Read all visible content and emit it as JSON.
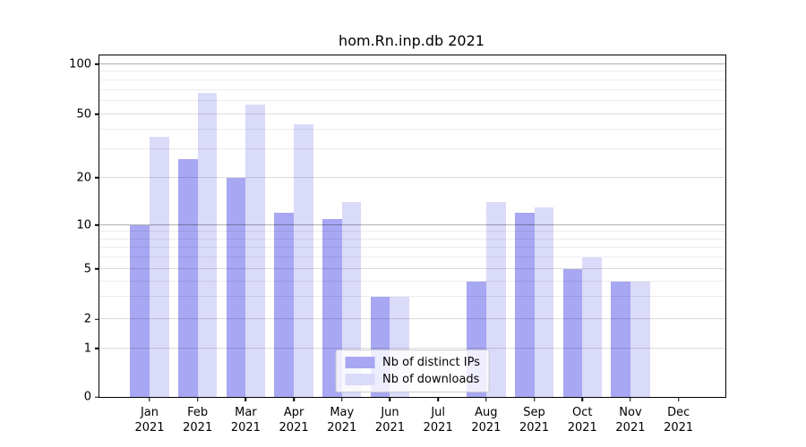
{
  "title": "hom.Rn.inp.db 2021",
  "chart_data": {
    "type": "bar",
    "title": "hom.Rn.inp.db 2021",
    "x_tick_months": [
      "Jan",
      "Feb",
      "Mar",
      "Apr",
      "May",
      "Jun",
      "Jul",
      "Aug",
      "Sep",
      "Oct",
      "Nov",
      "Dec"
    ],
    "x_tick_year": "2021",
    "categories": [
      "Jan 2021",
      "Feb 2021",
      "Mar 2021",
      "Apr 2021",
      "May 2021",
      "Jun 2021",
      "Jul 2021",
      "Aug 2021",
      "Sep 2021",
      "Oct 2021",
      "Nov 2021",
      "Dec 2021"
    ],
    "series": [
      {
        "name": "Nb of distinct IPs",
        "color": "#a7a7f3",
        "values": [
          10,
          26,
          20,
          12,
          11,
          3,
          0,
          4,
          12,
          5,
          4,
          0
        ]
      },
      {
        "name": "Nb of downloads",
        "color": "#dadaf9",
        "values": [
          36,
          67,
          57,
          43,
          14,
          3,
          0,
          14,
          13,
          6,
          4,
          0
        ]
      }
    ],
    "y_ticks": [
      0,
      1,
      2,
      5,
      10,
      20,
      50,
      100
    ],
    "y_tick_labels": [
      "0",
      "1",
      "2",
      "5",
      "10",
      "20",
      "50",
      "100"
    ],
    "minor_gridlines": [
      3,
      4,
      6,
      7,
      8,
      9,
      30,
      40,
      60,
      70,
      80,
      90
    ],
    "emphasized_gridlines": [
      10,
      100
    ],
    "ylim": [
      0,
      115
    ],
    "scale": "log-like with linear segment below 1",
    "grid": true,
    "legend_position": "lower center",
    "layout": {
      "tick_pos_pct": [
        [
          0,
          0
        ],
        [
          1,
          14.2
        ],
        [
          2,
          22.65
        ],
        [
          5,
          37.49
        ],
        [
          10,
          50.3
        ],
        [
          20,
          64.24
        ],
        [
          50,
          82.82
        ],
        [
          100,
          97.39
        ]
      ],
      "month_center_start_pct": 8.01,
      "month_center_step_pct": 7.682,
      "bar_width_pct": 3.104
    }
  },
  "colors": {
    "grid_minor": "rgba(0,0,0,0.075)",
    "grid_labeled": "rgba(0,0,0,0.14)",
    "grid_major": "rgba(0,0,0,0.31)"
  }
}
